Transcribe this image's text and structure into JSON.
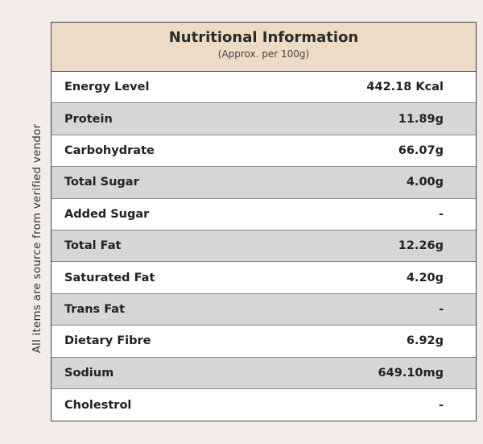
{
  "header": {
    "title": "Nutritional Information",
    "subtitle": "(Approx. per 100g)"
  },
  "side_note": "All items are source from verified vendor",
  "table": {
    "rows": [
      [
        "Energy Level",
        "442.18 Kcal"
      ],
      [
        "Protein",
        "11.89g"
      ],
      [
        "Carbohydrate",
        "66.07g"
      ],
      [
        "Total Sugar",
        "4.00g"
      ],
      [
        "Added Sugar",
        "-"
      ],
      [
        "Total Fat",
        "12.26g"
      ],
      [
        "Saturated Fat",
        "4.20g"
      ],
      [
        "Trans Fat",
        "-"
      ],
      [
        "Dietary Fibre",
        "6.92g"
      ],
      [
        "Sodium",
        "649.10mg"
      ],
      [
        "Cholestrol",
        "-"
      ]
    ]
  }
}
